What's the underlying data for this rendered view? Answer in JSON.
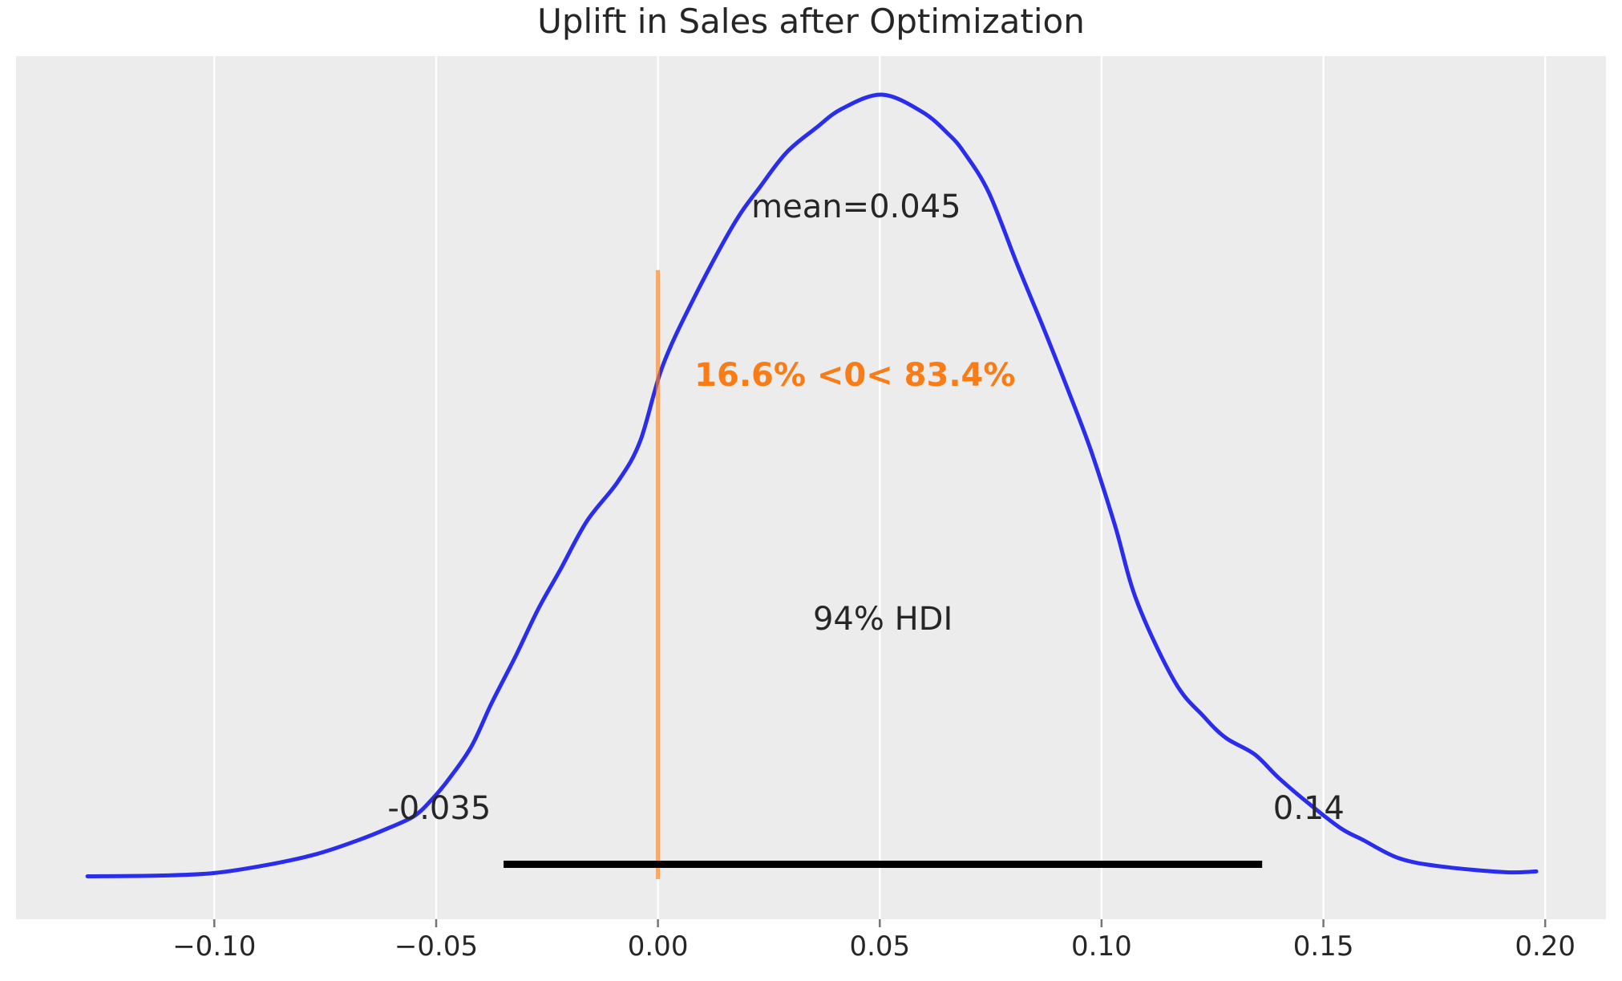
{
  "chart_data": {
    "type": "area",
    "subtype": "posterior-density-kde",
    "title": "Uplift in Sales after Optimization",
    "xlabel": "",
    "ylabel": "",
    "grid": "vertical-white-on-gray",
    "legend": "none",
    "x_range": [
      -0.1447,
      0.2137
    ],
    "x_ticks": [
      -0.1,
      -0.05,
      0.0,
      0.05,
      0.1,
      0.15,
      0.2
    ],
    "x_tick_labels": [
      "−0.10",
      "−0.05",
      "0.00",
      "0.05",
      "0.10",
      "0.15",
      "0.20"
    ],
    "mean_value": 0.045,
    "hdi": {
      "probability": "94%",
      "lo_value": -0.0348,
      "hi_value": 0.1362,
      "lo_label": "-0.035",
      "hi_label": "0.14",
      "bar_y_frac": 0.0637,
      "bar_thickness": 9
    },
    "reference_line": {
      "x": 0.0,
      "y0_frac": 0.0465,
      "y1_frac": 0.752,
      "pct_below": "16.6%",
      "pct_above": "83.4%"
    },
    "annotations": {
      "mean": {
        "text": "mean=0.045",
        "x": 0.0447,
        "y_frac": 0.825
      },
      "ref_pct": {
        "text": "16.6% <0< 83.4%",
        "x": 0.0444,
        "y_frac": 0.63
      },
      "hdi_label": {
        "text": "94% HDI",
        "x": 0.0507,
        "y_frac": 0.348
      },
      "hdi_lo": {
        "text": "-0.035",
        "x": -0.0493,
        "y_frac": 0.128
      },
      "hdi_hi": {
        "text": "0.14",
        "x": 0.1467,
        "y_frac": 0.128
      }
    },
    "curve_points": [
      [
        -0.1286,
        0.052
      ],
      [
        -0.112,
        0.053
      ],
      [
        -0.1,
        0.056
      ],
      [
        -0.088,
        0.066
      ],
      [
        -0.077,
        0.079
      ],
      [
        -0.068,
        0.095
      ],
      [
        -0.061,
        0.11
      ],
      [
        -0.055,
        0.125
      ],
      [
        -0.051,
        0.145
      ],
      [
        -0.047,
        0.171
      ],
      [
        -0.042,
        0.21
      ],
      [
        -0.0375,
        0.262
      ],
      [
        -0.032,
        0.32
      ],
      [
        -0.027,
        0.376
      ],
      [
        -0.022,
        0.424
      ],
      [
        -0.016,
        0.483
      ],
      [
        -0.009,
        0.531
      ],
      [
        -0.004,
        0.58
      ],
      [
        0.001,
        0.67
      ],
      [
        0.008,
        0.752
      ],
      [
        0.017,
        0.842
      ],
      [
        0.023,
        0.888
      ],
      [
        0.029,
        0.93
      ],
      [
        0.0355,
        0.959
      ],
      [
        0.0415,
        0.983
      ],
      [
        0.0505,
        1.0
      ],
      [
        0.0596,
        0.979
      ],
      [
        0.0655,
        0.952
      ],
      [
        0.069,
        0.93
      ],
      [
        0.0746,
        0.881
      ],
      [
        0.081,
        0.794
      ],
      [
        0.0866,
        0.721
      ],
      [
        0.092,
        0.648
      ],
      [
        0.0975,
        0.57
      ],
      [
        0.103,
        0.478
      ],
      [
        0.108,
        0.385
      ],
      [
        0.1165,
        0.288
      ],
      [
        0.123,
        0.246
      ],
      [
        0.128,
        0.22
      ],
      [
        0.1345,
        0.2
      ],
      [
        0.14,
        0.171
      ],
      [
        0.147,
        0.139
      ],
      [
        0.154,
        0.11
      ],
      [
        0.159,
        0.096
      ],
      [
        0.167,
        0.074
      ],
      [
        0.1765,
        0.064
      ],
      [
        0.191,
        0.057
      ],
      [
        0.198,
        0.058
      ]
    ],
    "colors": {
      "curve_blue": "#2a2eec",
      "ref_orange": "#fa7c17",
      "hdi_black": "#000000",
      "plot_bg": "#ececec",
      "grid_white": "#ffffff",
      "text_dark": "#262626",
      "tick_gray": "#757575"
    }
  }
}
